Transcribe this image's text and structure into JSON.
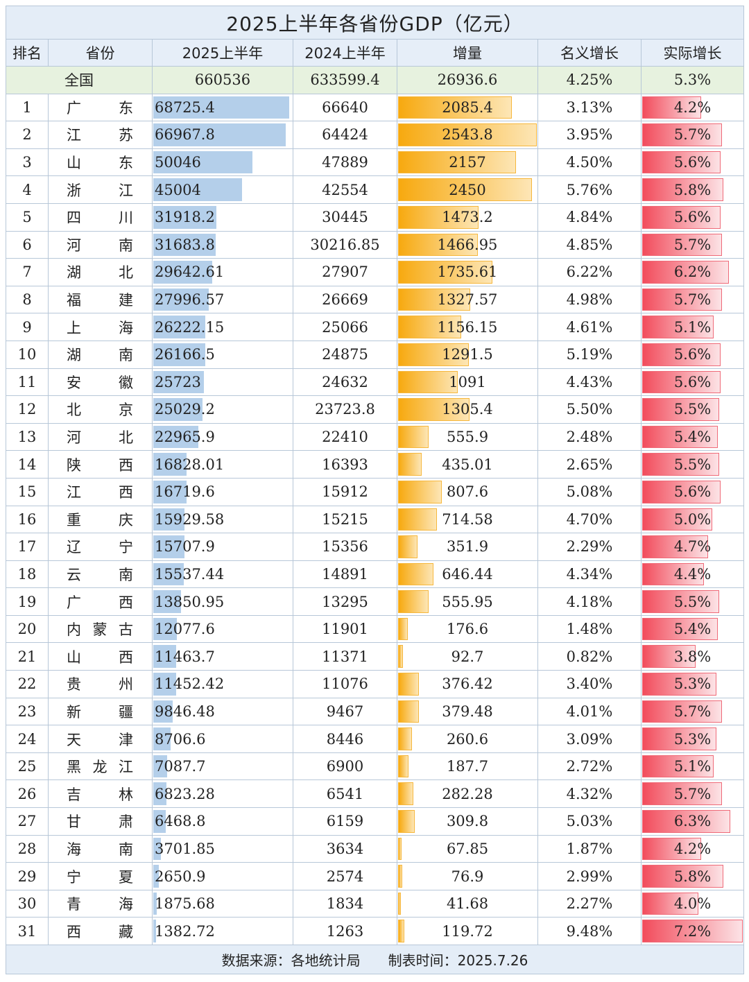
{
  "title": "2025上半年各省份GDP（亿元）",
  "headers": [
    "排名",
    "省份",
    "2025上半年",
    "2024上半年",
    "增量",
    "名义增长",
    "实际增长"
  ],
  "total": {
    "label": "全国",
    "gdp2025": "660536",
    "gdp2024": "633599.4",
    "incr": "26936.6",
    "nominal": "4.25%",
    "real": "5.3%"
  },
  "rows": [
    {
      "rank": "1",
      "name": "广东",
      "gdp2025": "68725.4",
      "gdp2024": "66640",
      "incr": "2085.4",
      "nominal": "3.13%",
      "real": "4.2%"
    },
    {
      "rank": "2",
      "name": "江苏",
      "gdp2025": "66967.8",
      "gdp2024": "64424",
      "incr": "2543.8",
      "nominal": "3.95%",
      "real": "5.7%"
    },
    {
      "rank": "3",
      "name": "山东",
      "gdp2025": "50046",
      "gdp2024": "47889",
      "incr": "2157",
      "nominal": "4.50%",
      "real": "5.6%"
    },
    {
      "rank": "4",
      "name": "浙江",
      "gdp2025": "45004",
      "gdp2024": "42554",
      "incr": "2450",
      "nominal": "5.76%",
      "real": "5.8%"
    },
    {
      "rank": "5",
      "name": "四川",
      "gdp2025": "31918.2",
      "gdp2024": "30445",
      "incr": "1473.2",
      "nominal": "4.84%",
      "real": "5.6%"
    },
    {
      "rank": "6",
      "name": "河南",
      "gdp2025": "31683.8",
      "gdp2024": "30216.85",
      "incr": "1466.95",
      "nominal": "4.85%",
      "real": "5.7%"
    },
    {
      "rank": "7",
      "name": "湖北",
      "gdp2025": "29642.61",
      "gdp2024": "27907",
      "incr": "1735.61",
      "nominal": "6.22%",
      "real": "6.2%"
    },
    {
      "rank": "8",
      "name": "福建",
      "gdp2025": "27996.57",
      "gdp2024": "26669",
      "incr": "1327.57",
      "nominal": "4.98%",
      "real": "5.7%"
    },
    {
      "rank": "9",
      "name": "上海",
      "gdp2025": "26222.15",
      "gdp2024": "25066",
      "incr": "1156.15",
      "nominal": "4.61%",
      "real": "5.1%"
    },
    {
      "rank": "10",
      "name": "湖南",
      "gdp2025": "26166.5",
      "gdp2024": "24875",
      "incr": "1291.5",
      "nominal": "5.19%",
      "real": "5.6%"
    },
    {
      "rank": "11",
      "name": "安徽",
      "gdp2025": "25723",
      "gdp2024": "24632",
      "incr": "1091",
      "nominal": "4.43%",
      "real": "5.6%"
    },
    {
      "rank": "12",
      "name": "北京",
      "gdp2025": "25029.2",
      "gdp2024": "23723.8",
      "incr": "1305.4",
      "nominal": "5.50%",
      "real": "5.5%"
    },
    {
      "rank": "13",
      "name": "河北",
      "gdp2025": "22965.9",
      "gdp2024": "22410",
      "incr": "555.9",
      "nominal": "2.48%",
      "real": "5.4%"
    },
    {
      "rank": "14",
      "name": "陕西",
      "gdp2025": "16828.01",
      "gdp2024": "16393",
      "incr": "435.01",
      "nominal": "2.65%",
      "real": "5.5%"
    },
    {
      "rank": "15",
      "name": "江西",
      "gdp2025": "16719.6",
      "gdp2024": "15912",
      "incr": "807.6",
      "nominal": "5.08%",
      "real": "5.6%"
    },
    {
      "rank": "16",
      "name": "重庆",
      "gdp2025": "15929.58",
      "gdp2024": "15215",
      "incr": "714.58",
      "nominal": "4.70%",
      "real": "5.0%"
    },
    {
      "rank": "17",
      "name": "辽宁",
      "gdp2025": "15707.9",
      "gdp2024": "15356",
      "incr": "351.9",
      "nominal": "2.29%",
      "real": "4.7%"
    },
    {
      "rank": "18",
      "name": "云南",
      "gdp2025": "15537.44",
      "gdp2024": "14891",
      "incr": "646.44",
      "nominal": "4.34%",
      "real": "4.4%"
    },
    {
      "rank": "19",
      "name": "广西",
      "gdp2025": "13850.95",
      "gdp2024": "13295",
      "incr": "555.95",
      "nominal": "4.18%",
      "real": "5.5%"
    },
    {
      "rank": "20",
      "name": "内蒙古",
      "gdp2025": "12077.6",
      "gdp2024": "11901",
      "incr": "176.6",
      "nominal": "1.48%",
      "real": "5.4%"
    },
    {
      "rank": "21",
      "name": "山西",
      "gdp2025": "11463.7",
      "gdp2024": "11371",
      "incr": "92.7",
      "nominal": "0.82%",
      "real": "3.8%"
    },
    {
      "rank": "22",
      "name": "贵州",
      "gdp2025": "11452.42",
      "gdp2024": "11076",
      "incr": "376.42",
      "nominal": "3.40%",
      "real": "5.3%"
    },
    {
      "rank": "23",
      "name": "新疆",
      "gdp2025": "9846.48",
      "gdp2024": "9467",
      "incr": "379.48",
      "nominal": "4.01%",
      "real": "5.7%"
    },
    {
      "rank": "24",
      "name": "天津",
      "gdp2025": "8706.6",
      "gdp2024": "8446",
      "incr": "260.6",
      "nominal": "3.09%",
      "real": "5.3%"
    },
    {
      "rank": "25",
      "name": "黑龙江",
      "gdp2025": "7087.7",
      "gdp2024": "6900",
      "incr": "187.7",
      "nominal": "2.72%",
      "real": "5.1%"
    },
    {
      "rank": "26",
      "name": "吉林",
      "gdp2025": "6823.28",
      "gdp2024": "6541",
      "incr": "282.28",
      "nominal": "4.32%",
      "real": "5.7%"
    },
    {
      "rank": "27",
      "name": "甘肃",
      "gdp2025": "6468.8",
      "gdp2024": "6159",
      "incr": "309.8",
      "nominal": "5.03%",
      "real": "6.3%"
    },
    {
      "rank": "28",
      "name": "海南",
      "gdp2025": "3701.85",
      "gdp2024": "3634",
      "incr": "67.85",
      "nominal": "1.87%",
      "real": "4.2%"
    },
    {
      "rank": "29",
      "name": "宁夏",
      "gdp2025": "2650.9",
      "gdp2024": "2574",
      "incr": "76.9",
      "nominal": "2.99%",
      "real": "5.8%"
    },
    {
      "rank": "30",
      "name": "青海",
      "gdp2025": "1875.68",
      "gdp2024": "1834",
      "incr": "41.68",
      "nominal": "2.27%",
      "real": "4.0%"
    },
    {
      "rank": "31",
      "name": "西藏",
      "gdp2025": "1382.72",
      "gdp2024": "1263",
      "incr": "119.72",
      "nominal": "9.48%",
      "real": "7.2%"
    }
  ],
  "footer": "数据来源：各地统计局　　制表时间：2025.7.26",
  "colors": {
    "header_bg": "#e6eef8",
    "total_bg": "#e7f2df",
    "gdp_bar": "#b4cfea",
    "incr_bar": "#f7a90f",
    "real_bar": "#f24c5c"
  }
}
